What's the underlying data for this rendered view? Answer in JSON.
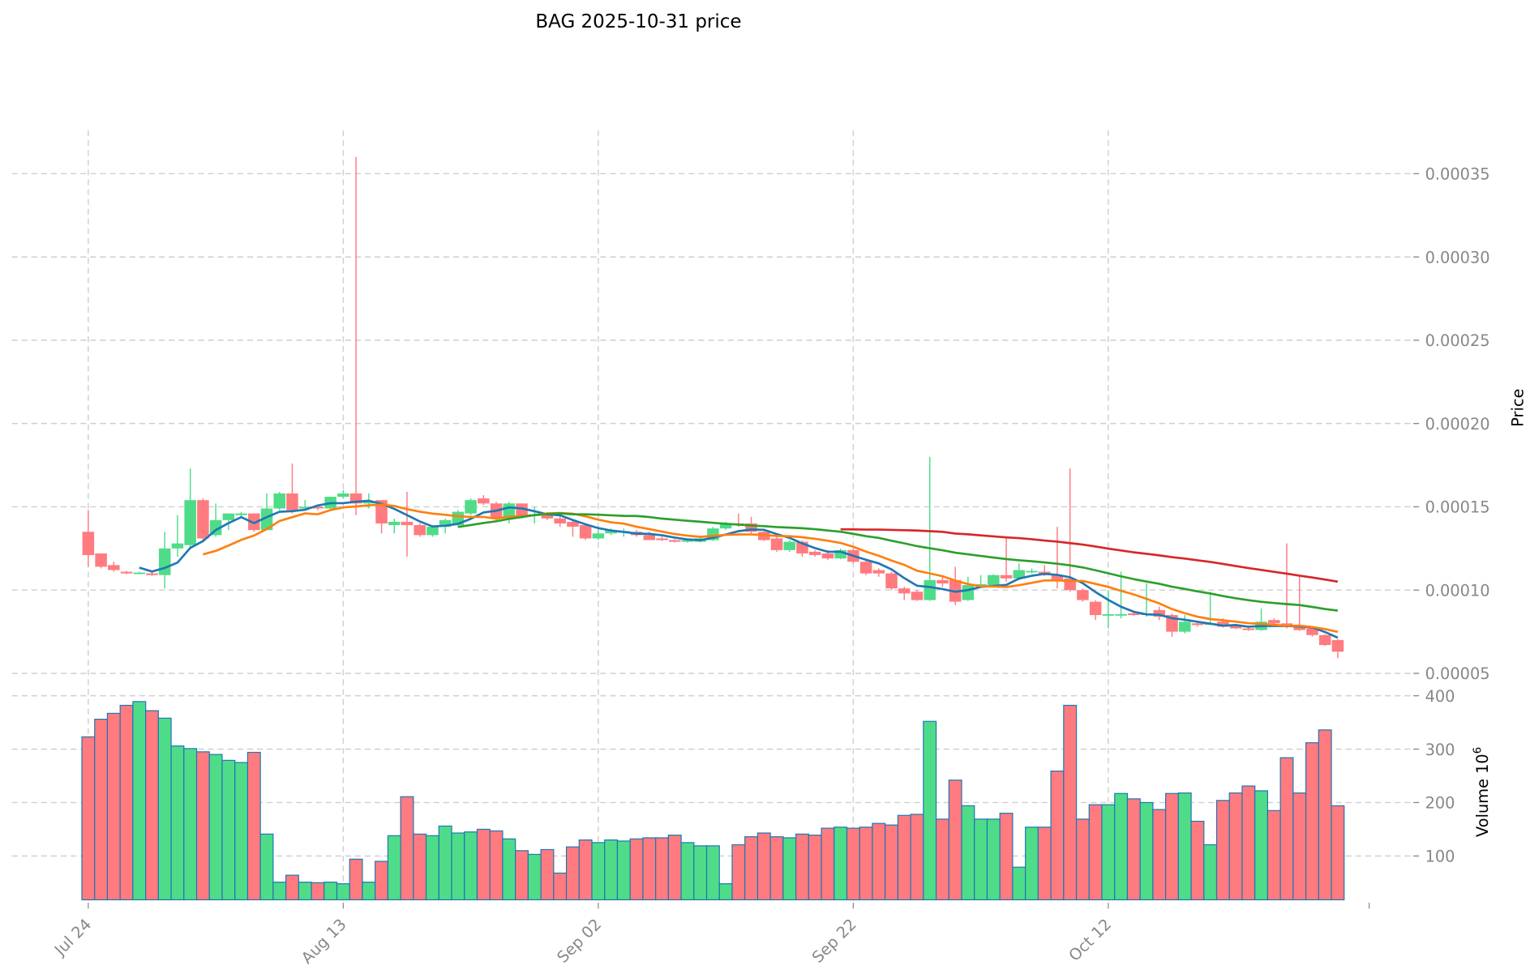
{
  "chart_data": {
    "type": "candlestick",
    "title": "BAG  2025-10-31  price",
    "ylabel": "Price",
    "volume_label": "Volume  10",
    "volume_exponent": "6",
    "price_unit": 1e-05,
    "ylim": [
      4.41,
      37.6
    ],
    "volume_ylim": [
      18,
      418
    ],
    "price_ticks": [
      {
        "value": 35,
        "label": "0.00035"
      },
      {
        "value": 30,
        "label": "0.00030"
      },
      {
        "value": 25,
        "label": "0.00025"
      },
      {
        "value": 20,
        "label": "0.00020"
      },
      {
        "value": 15,
        "label": "0.00015"
      },
      {
        "value": 10,
        "label": "0.00010"
      },
      {
        "value": 5,
        "label": "0.00005"
      }
    ],
    "volume_ticks": [
      {
        "value": 400,
        "label": "400"
      },
      {
        "value": 300,
        "label": "300"
      },
      {
        "value": 200,
        "label": "200"
      },
      {
        "value": 100,
        "label": "100"
      }
    ],
    "x_ticks": [
      {
        "index": 0,
        "label": "Jul 24"
      },
      {
        "index": 20,
        "label": "Aug 13"
      },
      {
        "index": 40,
        "label": "Sep 02"
      },
      {
        "index": 60,
        "label": "Sep 22"
      },
      {
        "index": 80,
        "label": "Oct 12"
      }
    ],
    "colors": {
      "up": "#4fdc88",
      "down": "#ff7b7f",
      "volume_edge": "#1f77b4",
      "grid": "#cfcfcf"
    },
    "moving_averages": [
      {
        "period": 5,
        "color": "#1f77b4"
      },
      {
        "period": 10,
        "color": "#ff7f0e"
      },
      {
        "period": 30,
        "color": "#2ca02c"
      },
      {
        "period": 60,
        "color": "#d62728"
      }
    ],
    "ohlc_columns": [
      "open",
      "high",
      "low",
      "close",
      "volume_millions"
    ],
    "ohlc": [
      [
        13.5,
        14.8,
        11.4,
        12.1,
        323
      ],
      [
        12.2,
        12.2,
        11.3,
        11.4,
        356
      ],
      [
        11.5,
        11.7,
        11.1,
        11.2,
        367
      ],
      [
        11.1,
        11.15,
        10.95,
        11.0,
        382
      ],
      [
        11.0,
        11.1,
        10.95,
        11.05,
        389
      ],
      [
        11.0,
        11.05,
        10.85,
        10.9,
        372
      ],
      [
        10.9,
        13.5,
        10.1,
        12.5,
        358
      ],
      [
        12.5,
        14.5,
        12.0,
        12.8,
        306
      ],
      [
        12.7,
        17.3,
        12.5,
        15.4,
        301
      ],
      [
        15.4,
        15.5,
        12.9,
        13.1,
        295
      ],
      [
        13.3,
        15.2,
        13.2,
        14.2,
        290
      ],
      [
        14.2,
        14.6,
        13.6,
        14.6,
        279
      ],
      [
        14.5,
        14.7,
        14.4,
        14.6,
        275
      ],
      [
        14.6,
        14.6,
        13.5,
        13.6,
        294
      ],
      [
        13.6,
        15.8,
        13.6,
        14.9,
        141
      ],
      [
        14.9,
        15.9,
        14.8,
        15.8,
        51
      ],
      [
        15.8,
        17.6,
        14.6,
        14.8,
        64
      ],
      [
        14.9,
        15.4,
        14.8,
        15.0,
        51
      ],
      [
        15.0,
        15.1,
        14.8,
        14.9,
        50
      ],
      [
        14.9,
        15.6,
        14.8,
        15.6,
        51
      ],
      [
        15.6,
        16.0,
        15.5,
        15.8,
        48
      ],
      [
        15.8,
        36.0,
        14.5,
        15.2,
        94
      ],
      [
        15.2,
        15.8,
        14.9,
        15.3,
        51
      ],
      [
        15.4,
        15.4,
        13.4,
        14.0,
        90
      ],
      [
        13.9,
        14.3,
        13.4,
        14.1,
        138
      ],
      [
        14.1,
        15.9,
        12.0,
        13.9,
        211
      ],
      [
        13.9,
        14.0,
        13.2,
        13.3,
        141
      ],
      [
        13.3,
        13.9,
        13.2,
        13.8,
        138
      ],
      [
        13.8,
        14.3,
        13.4,
        14.2,
        156
      ],
      [
        13.9,
        14.8,
        13.8,
        14.7,
        143
      ],
      [
        14.6,
        15.5,
        14.5,
        15.4,
        145
      ],
      [
        15.5,
        15.7,
        15.1,
        15.2,
        150
      ],
      [
        15.2,
        15.3,
        14.2,
        14.3,
        147
      ],
      [
        14.4,
        15.3,
        14.0,
        15.2,
        132
      ],
      [
        15.2,
        15.2,
        14.3,
        14.4,
        110
      ],
      [
        14.45,
        15.0,
        14.0,
        14.55,
        103
      ],
      [
        14.5,
        14.6,
        14.2,
        14.3,
        112
      ],
      [
        14.3,
        14.5,
        13.8,
        14.0,
        68
      ],
      [
        14.1,
        14.2,
        13.2,
        13.8,
        117
      ],
      [
        13.9,
        13.9,
        13.0,
        13.1,
        130
      ],
      [
        13.1,
        13.8,
        13.0,
        13.4,
        125
      ],
      [
        13.4,
        13.7,
        13.3,
        13.6,
        130
      ],
      [
        13.45,
        13.7,
        13.2,
        13.55,
        128
      ],
      [
        13.5,
        13.6,
        13.2,
        13.3,
        132
      ],
      [
        13.3,
        13.5,
        13.0,
        13.0,
        134
      ],
      [
        13.1,
        13.2,
        12.95,
        13.0,
        134
      ],
      [
        13.0,
        13.05,
        12.85,
        12.9,
        139
      ],
      [
        12.9,
        13.1,
        12.85,
        13.0,
        125
      ],
      [
        12.9,
        13.2,
        12.85,
        13.1,
        119
      ],
      [
        13.0,
        13.8,
        12.95,
        13.7,
        119
      ],
      [
        13.7,
        14.1,
        13.6,
        14.0,
        48
      ],
      [
        14.0,
        14.6,
        13.8,
        13.9,
        121
      ],
      [
        14.0,
        14.4,
        13.4,
        13.5,
        136
      ],
      [
        13.5,
        13.6,
        12.95,
        13.0,
        143
      ],
      [
        13.1,
        13.2,
        12.3,
        12.4,
        136
      ],
      [
        12.4,
        13.0,
        12.3,
        12.9,
        134
      ],
      [
        12.9,
        13.0,
        12.0,
        12.2,
        141
      ],
      [
        12.3,
        12.4,
        12.0,
        12.1,
        139
      ],
      [
        12.2,
        12.4,
        11.8,
        11.9,
        152
      ],
      [
        11.9,
        12.5,
        11.85,
        12.4,
        154
      ],
      [
        12.4,
        12.5,
        11.6,
        11.7,
        152
      ],
      [
        11.7,
        11.8,
        10.9,
        11.0,
        154
      ],
      [
        11.2,
        11.3,
        10.8,
        11.0,
        161
      ],
      [
        11.0,
        11.1,
        10.0,
        10.1,
        158
      ],
      [
        10.1,
        10.2,
        9.4,
        9.8,
        176
      ],
      [
        9.9,
        10.0,
        9.35,
        9.4,
        178
      ],
      [
        9.4,
        18.0,
        9.35,
        10.6,
        352
      ],
      [
        10.6,
        10.8,
        10.2,
        10.4,
        169
      ],
      [
        10.6,
        11.4,
        9.1,
        9.3,
        242
      ],
      [
        9.4,
        10.8,
        9.35,
        10.3,
        194
      ],
      [
        10.3,
        10.9,
        10.25,
        10.35,
        169
      ],
      [
        10.3,
        10.95,
        10.25,
        10.9,
        169
      ],
      [
        10.9,
        13.1,
        10.5,
        10.7,
        180
      ],
      [
        10.7,
        11.6,
        10.6,
        11.2,
        79
      ],
      [
        11.1,
        11.3,
        11.0,
        11.15,
        154
      ],
      [
        11.1,
        11.5,
        10.85,
        10.9,
        154
      ],
      [
        10.9,
        13.8,
        10.1,
        10.6,
        259
      ],
      [
        10.7,
        17.3,
        9.9,
        10.0,
        382
      ],
      [
        10.0,
        10.1,
        9.3,
        9.4,
        169
      ],
      [
        9.3,
        9.4,
        8.2,
        8.5,
        196
      ],
      [
        8.5,
        10.0,
        7.7,
        8.55,
        196
      ],
      [
        8.5,
        11.1,
        8.3,
        8.55,
        217
      ],
      [
        8.6,
        8.65,
        8.45,
        8.5,
        207
      ],
      [
        8.5,
        10.4,
        8.4,
        8.6,
        200
      ],
      [
        8.8,
        9.0,
        8.2,
        8.4,
        187
      ],
      [
        8.5,
        8.6,
        7.2,
        7.5,
        217
      ],
      [
        7.5,
        8.5,
        7.4,
        8.1,
        218
      ],
      [
        8.0,
        8.1,
        7.8,
        7.9,
        165
      ],
      [
        7.95,
        9.9,
        7.9,
        8.0,
        121
      ],
      [
        8.1,
        8.3,
        7.75,
        7.8,
        204
      ],
      [
        7.9,
        7.95,
        7.65,
        7.7,
        218
      ],
      [
        7.7,
        7.75,
        7.55,
        7.6,
        231
      ],
      [
        7.6,
        8.9,
        7.55,
        8.1,
        222
      ],
      [
        8.2,
        8.3,
        7.95,
        8.0,
        185
      ],
      [
        8.0,
        12.8,
        7.7,
        7.8,
        284
      ],
      [
        7.9,
        10.8,
        7.55,
        7.6,
        218
      ],
      [
        7.7,
        7.75,
        7.2,
        7.3,
        312
      ],
      [
        7.3,
        7.35,
        6.65,
        6.7,
        336
      ],
      [
        7.0,
        7.05,
        5.9,
        6.3,
        194
      ]
    ]
  }
}
